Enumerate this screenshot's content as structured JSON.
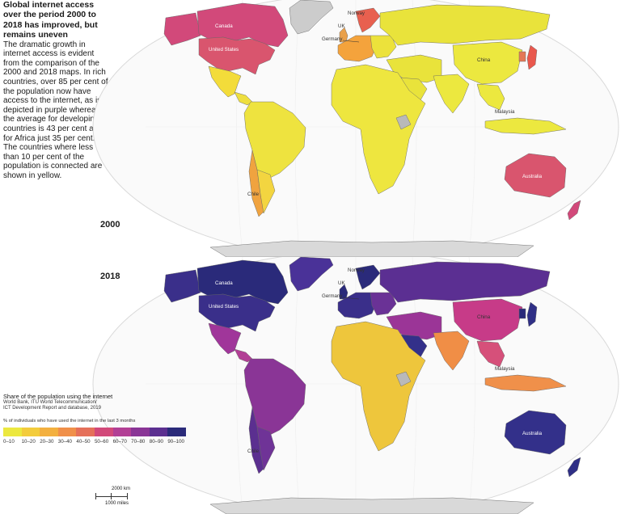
{
  "intro": {
    "headline": "Global internet access over the period 2000 to 2018 has improved, but remains uneven",
    "body": "The dramatic growth in internet access is evident from the comparison of the 2000 and 2018 maps. In rich countries, over 85 per cent of the population now have access to the internet, as is depicted in purple whereas the average for developing countries is 43 per cent and for Africa just 35 per cent. The countries where less than 10 per cent of the population is connected are shown in yellow."
  },
  "maps": [
    {
      "year": "2000",
      "labels": {
        "canada": "Canada",
        "us": "United States",
        "norway": "Norway",
        "uk": "UK",
        "germany": "Germany",
        "china": "China",
        "malaysia": "Malaysia",
        "australia": "Australia",
        "chile": "Chile"
      },
      "colors": {
        "canada": "#d2497a",
        "us": "#d9556e",
        "alaska": "#d2497a",
        "greenland": "#cccccc",
        "mexico": "#f3dc3a",
        "central_america": "#eedf3f",
        "south_america": "#eee33f",
        "chile": "#f0a33f",
        "argentina": "#f3d540",
        "africa": "#eee63f",
        "europe_west": "#f4a33c",
        "nordic": "#e8604f",
        "uk": "#e9a04a",
        "eastern_europe": "#ece23b",
        "russia": "#e9e33b",
        "middle_east": "#e9e33b",
        "arabia": "#e9e33b",
        "south_asia": "#ece83f",
        "china": "#ece83f",
        "japan": "#e9584d",
        "korea": "#e47856",
        "southeast_asia": "#ece83f",
        "indonesia": "#ece83f",
        "australia": "#d9556e",
        "new_zealand": "#d2497a",
        "antarctica": "#d9d9d9",
        "missing": "#b9b9b9"
      }
    },
    {
      "year": "2018",
      "labels": {
        "canada": "Canada",
        "us": "United States",
        "norway": "Norway",
        "uk": "UK",
        "germany": "Germany",
        "china": "China",
        "malaysia": "Malaysia",
        "australia": "Australia",
        "chile": "Chile"
      },
      "colors": {
        "canada": "#2a2a7a",
        "us": "#3a2f8a",
        "alaska": "#3a2f8a",
        "greenland": "#4a3298",
        "mexico": "#a0369a",
        "central_america": "#b23f95",
        "south_america": "#8a3596",
        "chile": "#5b2f90",
        "argentina": "#6f3397",
        "africa": "#eec63c",
        "europe_west": "#3a2f8a",
        "nordic": "#2a2a7a",
        "uk": "#2a2a7a",
        "eastern_europe": "#6a3296",
        "russia": "#5b2f92",
        "middle_east": "#9b3597",
        "arabia": "#33308a",
        "south_asia": "#f08e46",
        "china": "#c73b88",
        "japan": "#2f2f86",
        "korea": "#2a2a7a",
        "southeast_asia": "#d6507a",
        "indonesia": "#f0904a",
        "australia": "#33308a",
        "new_zealand": "#2f2f86",
        "antarctica": "#d9d9d9",
        "missing": "#b9b9b9"
      }
    }
  ],
  "legend": {
    "title": "Share of the population using the internet",
    "source_line1": "World Bank, ITU World Telecommunication/",
    "source_line2": "ICT Development Report and database, 2019",
    "measure": "% of individuals who have used the internet in the last 3 months",
    "bins": [
      {
        "label": "0–10",
        "color": "#ece83f"
      },
      {
        "label": "10–20",
        "color": "#f3cc3c"
      },
      {
        "label": "20–30",
        "color": "#f3b03f"
      },
      {
        "label": "30–40",
        "color": "#f0904a"
      },
      {
        "label": "40–50",
        "color": "#e5705a"
      },
      {
        "label": "50–60",
        "color": "#d2497a"
      },
      {
        "label": "60–70",
        "color": "#b23f95"
      },
      {
        "label": "70–80",
        "color": "#8a3596"
      },
      {
        "label": "80–90",
        "color": "#5b2f90"
      },
      {
        "label": "90–100",
        "color": "#2a2a7a"
      }
    ]
  },
  "scale": {
    "km": "2000 km",
    "miles": "1000 miles"
  }
}
